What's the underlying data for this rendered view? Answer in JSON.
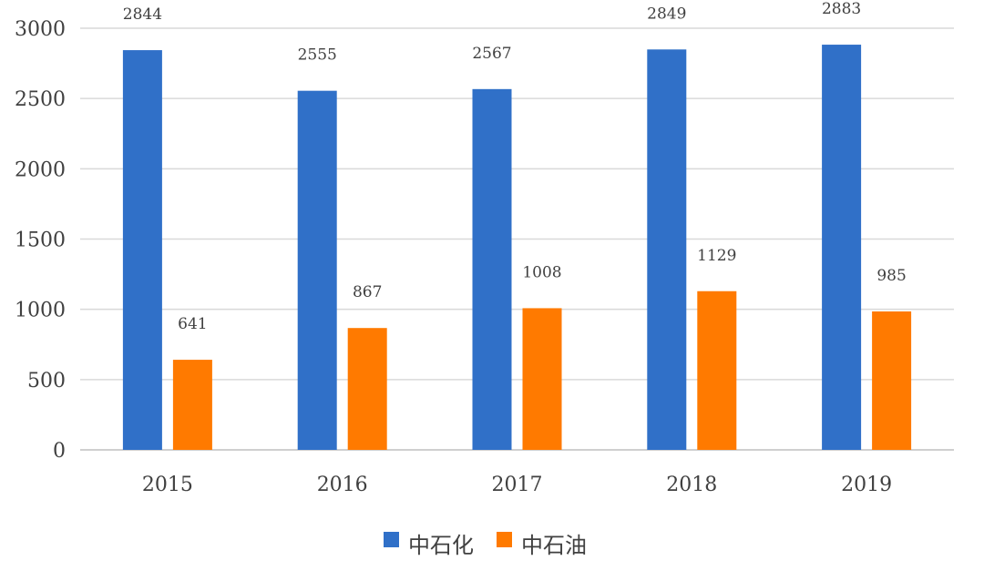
{
  "chart_data": {
    "type": "bar",
    "categories": [
      "2015",
      "2016",
      "2017",
      "2018",
      "2019"
    ],
    "series": [
      {
        "name": "中石化",
        "values": [
          2844,
          2555,
          2567,
          2849,
          2883
        ],
        "color": "#3070c8"
      },
      {
        "name": "中石油",
        "values": [
          641,
          867,
          1008,
          1129,
          985
        ],
        "color": "#ff7a00"
      }
    ],
    "yticks": [
      "0",
      "500",
      "1000",
      "1500",
      "2000",
      "2500",
      "3000"
    ],
    "ylim": [
      0,
      3000
    ],
    "grid": true,
    "legend": "bottom-center"
  }
}
